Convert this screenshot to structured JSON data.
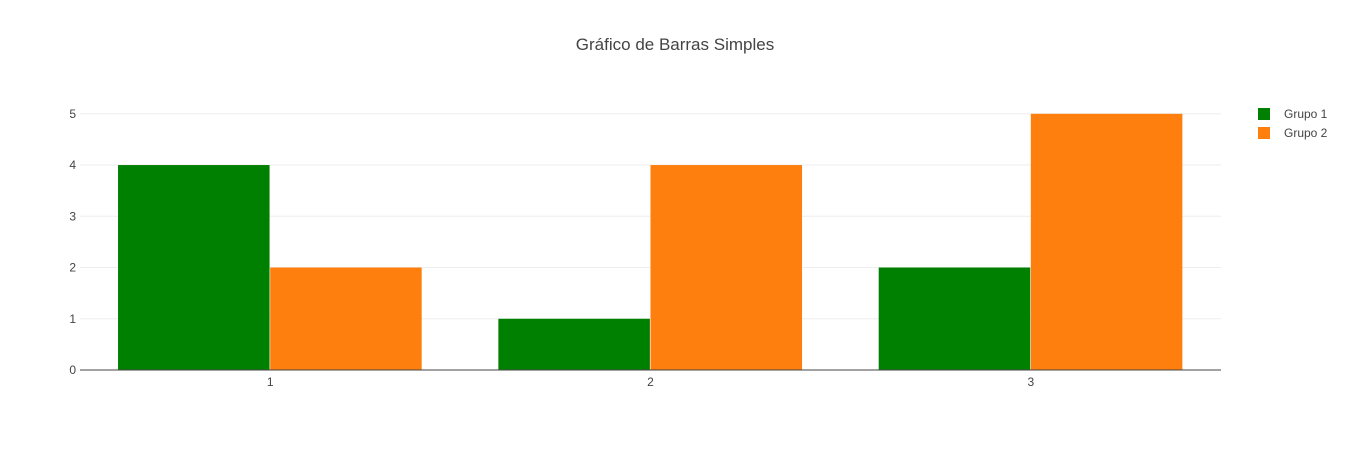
{
  "chart_data": {
    "type": "bar",
    "title": "Gráfico de Barras Simples",
    "xlabel": "",
    "ylabel": "",
    "categories": [
      "1",
      "2",
      "3"
    ],
    "series": [
      {
        "name": "Grupo 1",
        "color": "#008000",
        "values": [
          4,
          1,
          2
        ]
      },
      {
        "name": "Grupo 2",
        "color": "#ff7f0e",
        "values": [
          2,
          4,
          5
        ]
      }
    ],
    "ylim": [
      0,
      5.25
    ],
    "yticks": [
      0,
      1,
      2,
      3,
      4,
      5
    ],
    "grid": true,
    "legend_position": "top-right"
  }
}
